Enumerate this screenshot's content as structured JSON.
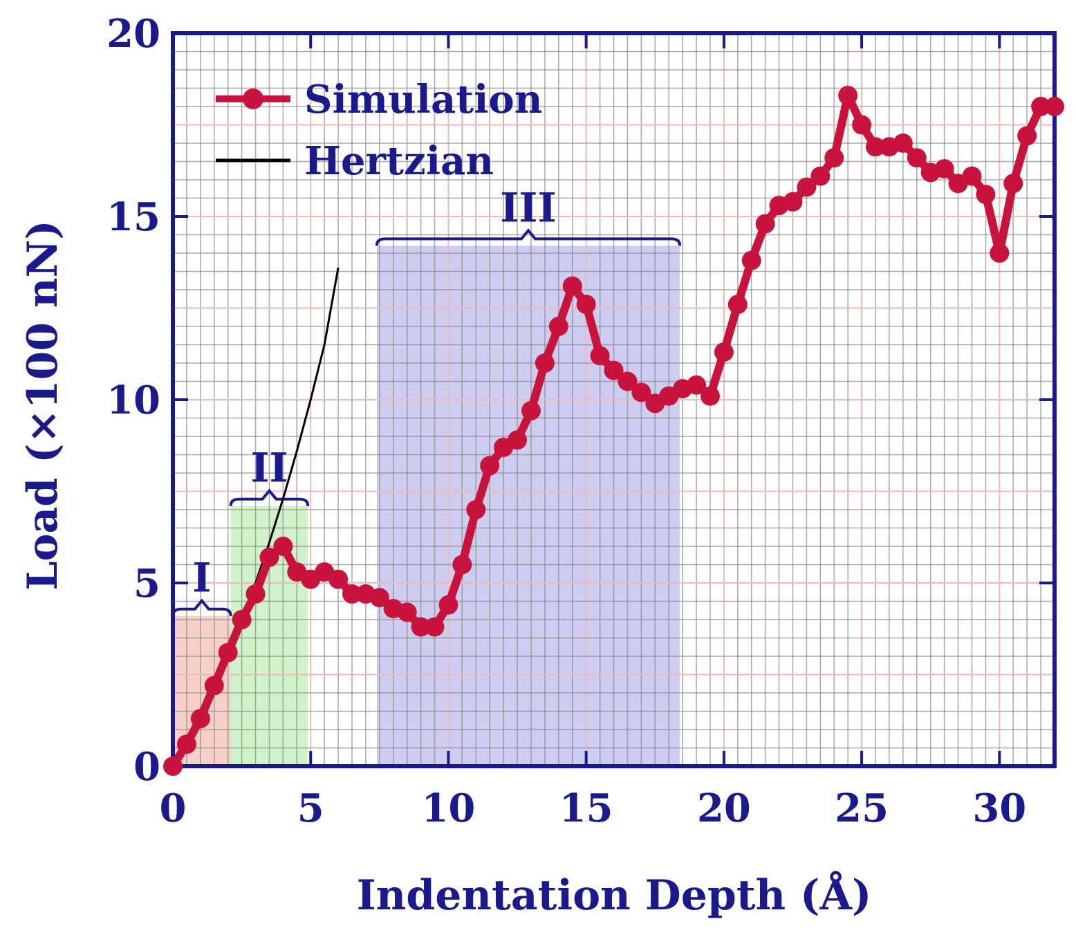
{
  "chart_data": {
    "type": "line",
    "xlabel": "Indentation Depth (Å)",
    "ylabel": "Load (×100 nN)",
    "xlim": [
      0,
      32
    ],
    "ylim": [
      0,
      20
    ],
    "x_ticks": [
      "0",
      "5",
      "10",
      "15",
      "20",
      "25",
      "30"
    ],
    "y_ticks": [
      "0",
      "5",
      "10",
      "15",
      "20"
    ],
    "x_tick_values": [
      0,
      5,
      10,
      15,
      20,
      25,
      30
    ],
    "y_tick_values": [
      0,
      5,
      10,
      15,
      20
    ],
    "grid": true,
    "legend_position": "top-left",
    "colors": {
      "simulation": "#c8143c",
      "hertzian": "#000000",
      "axis": "#1a1a8c",
      "grid_major": "#f2b8b8",
      "grid_minor": "#888888",
      "region_I": "#f6c8c0",
      "region_II": "#c8f0c0",
      "region_III": "#c4c4f0"
    },
    "regions": [
      {
        "label": "I",
        "x_start": 0,
        "x_end": 2.1,
        "y_top": 4.1
      },
      {
        "label": "II",
        "x_start": 2.1,
        "x_end": 4.9,
        "y_top": 7.1
      },
      {
        "label": "III",
        "x_start": 7.4,
        "x_end": 18.4,
        "y_top": 14.2
      }
    ],
    "series": [
      {
        "name": "Simulation",
        "x": [
          0,
          0.5,
          1.0,
          1.5,
          2.0,
          2.5,
          3.0,
          3.5,
          4.0,
          4.5,
          5.0,
          5.5,
          6.0,
          6.5,
          7.0,
          7.5,
          8.0,
          8.5,
          9.0,
          9.5,
          10.0,
          10.5,
          11.0,
          11.5,
          12.0,
          12.5,
          13.0,
          13.5,
          14.0,
          14.5,
          15.0,
          15.5,
          16.0,
          16.5,
          17.0,
          17.5,
          18.0,
          18.5,
          19.0,
          19.5,
          20.0,
          20.5,
          21.0,
          21.5,
          22.0,
          22.5,
          23.0,
          23.5,
          24.0,
          24.5,
          25.0,
          25.5,
          26.0,
          26.5,
          27.0,
          27.5,
          28.0,
          28.5,
          29.0,
          29.5,
          30.0,
          30.5,
          31.0,
          31.5,
          32.0
        ],
        "y": [
          0,
          0.6,
          1.3,
          2.2,
          3.1,
          4.0,
          4.7,
          5.7,
          6.0,
          5.3,
          5.1,
          5.3,
          5.1,
          4.7,
          4.7,
          4.6,
          4.3,
          4.2,
          3.8,
          3.8,
          4.4,
          5.5,
          7.0,
          8.2,
          8.7,
          8.9,
          9.7,
          11.0,
          12.0,
          13.1,
          12.6,
          11.2,
          10.8,
          10.5,
          10.2,
          9.9,
          10.1,
          10.3,
          10.4,
          10.1,
          11.3,
          12.6,
          13.8,
          14.8,
          15.3,
          15.4,
          15.8,
          16.1,
          16.6,
          18.3,
          17.5,
          16.9,
          16.9,
          17.0,
          16.6,
          16.2,
          16.3,
          15.9,
          16.1,
          15.6,
          14.0,
          15.9,
          17.2,
          18.0,
          18.0
        ]
      },
      {
        "name": "Hertzian",
        "x": [
          0,
          0.5,
          1.0,
          1.5,
          2.0,
          2.5,
          3.0,
          3.5,
          4.0,
          4.5,
          5.0,
          5.5,
          6.0
        ],
        "y": [
          0,
          0.6,
          1.3,
          2.1,
          3.0,
          4.0,
          5.0,
          6.1,
          7.3,
          8.6,
          10.0,
          11.5,
          13.6
        ]
      }
    ]
  }
}
